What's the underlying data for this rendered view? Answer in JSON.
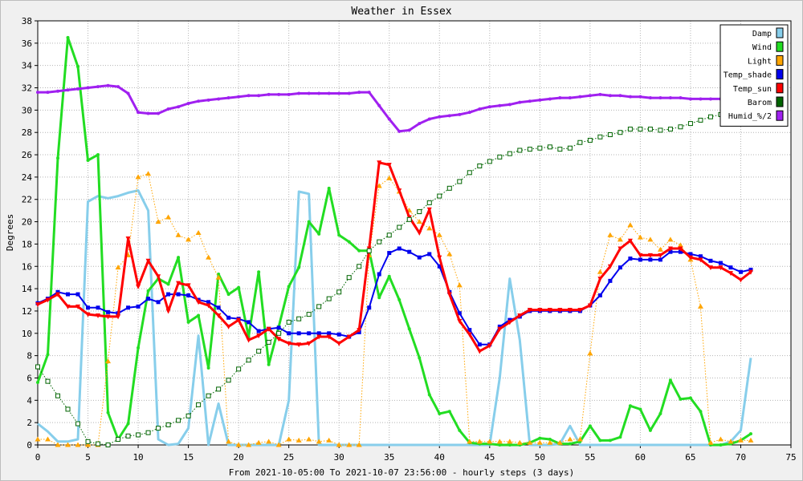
{
  "chart_data": {
    "type": "line",
    "title": "Weather in Essex",
    "xlabel": "From 2021-10-05:00 To 2021-10-07 23:56:00 - hourly steps (3 days)",
    "ylabel": "Degrees",
    "xlim": [
      0,
      75
    ],
    "ylim": [
      0,
      38
    ],
    "x_ticks": [
      0,
      5,
      10,
      15,
      20,
      25,
      30,
      35,
      40,
      45,
      50,
      55,
      60,
      65,
      70,
      75
    ],
    "y_ticks": [
      0,
      2,
      4,
      6,
      8,
      10,
      12,
      14,
      16,
      18,
      20,
      22,
      24,
      26,
      28,
      30,
      32,
      34,
      36,
      38
    ],
    "grid": true,
    "legend_position": "top-right",
    "series": [
      {
        "name": "Damp",
        "color": "#87ceeb",
        "marker": "none",
        "style": "solid",
        "width": 3,
        "values": [
          1.9,
          1.2,
          0.3,
          0.3,
          0.5,
          21.8,
          22.3,
          22.1,
          22.3,
          22.6,
          22.8,
          21.0,
          0.5,
          0,
          0.1,
          1.5,
          9.8,
          0,
          3.7,
          0,
          0,
          0,
          0,
          0,
          0,
          4.0,
          22.7,
          22.5,
          0,
          0,
          0,
          0,
          0,
          0,
          0,
          0,
          0,
          0,
          0,
          0,
          0,
          0,
          0,
          0,
          0,
          0,
          6.0,
          14.9,
          9.4,
          0,
          0,
          0,
          0.1,
          1.7,
          0,
          0,
          0,
          0,
          0,
          0,
          0,
          0,
          0,
          0,
          0,
          0,
          0,
          0,
          0,
          0.3,
          1.3,
          7.8
        ]
      },
      {
        "name": "Wind",
        "color": "#22dd22",
        "marker": "dot",
        "style": "solid",
        "width": 3,
        "values": [
          5.6,
          8.1,
          25.7,
          36.5,
          33.9,
          25.5,
          26.0,
          2.9,
          0.5,
          1.9,
          8.7,
          13.8,
          14.9,
          14.4,
          16.8,
          11.0,
          11.6,
          6.9,
          15.3,
          13.5,
          14.1,
          9.7,
          15.5,
          7.2,
          10.6,
          14.2,
          15.9,
          20.0,
          18.9,
          23.0,
          18.8,
          18.2,
          17.4,
          17.4,
          13.2,
          15.1,
          13.0,
          10.4,
          7.8,
          4.5,
          2.8,
          3.0,
          1.3,
          0.2,
          0.1,
          0.1,
          0,
          0,
          0,
          0.2,
          0.6,
          0.5,
          0.1,
          0.1,
          0.3,
          1.7,
          0.4,
          0.4,
          0.7,
          3.5,
          3.2,
          1.3,
          2.8,
          5.8,
          4.1,
          4.2,
          3.0,
          0,
          0,
          0.1,
          0.4,
          1.0
        ]
      },
      {
        "name": "Light",
        "color": "#ffa500",
        "marker": "triangle",
        "style": "dotted",
        "width": 1,
        "values": [
          0.5,
          0.5,
          0,
          0,
          0,
          0,
          0,
          7.5,
          15.9,
          17.0,
          24.0,
          24.3,
          20.0,
          20.4,
          18.8,
          18.4,
          19.0,
          16.8,
          15.0,
          0.3,
          0,
          0,
          0.2,
          0.3,
          0,
          0.5,
          0.4,
          0.5,
          0.3,
          0.4,
          0,
          0,
          0,
          17.0,
          23.2,
          23.9,
          22.7,
          21.0,
          20.0,
          19.4,
          18.8,
          17.1,
          14.3,
          0.3,
          0.3,
          0.3,
          0.3,
          0.3,
          0.2,
          0.2,
          0.2,
          0.2,
          0.2,
          0.5,
          0.5,
          8.2,
          15.5,
          18.8,
          18.4,
          19.7,
          18.6,
          18.4,
          17.5,
          18.4,
          17.9,
          16.6,
          12.4,
          0.2,
          0.5,
          0.3,
          0.4,
          0.4
        ]
      },
      {
        "name": "Temp_shade",
        "color": "#0000ee",
        "marker": "square",
        "style": "solid",
        "width": 2,
        "values": [
          12.7,
          13.1,
          13.7,
          13.5,
          13.5,
          12.3,
          12.3,
          11.9,
          11.8,
          12.3,
          12.4,
          13.1,
          12.8,
          13.5,
          13.5,
          13.4,
          13.0,
          12.8,
          12.3,
          11.4,
          11.3,
          11.0,
          10.2,
          10.4,
          10.5,
          10.0,
          10.0,
          10.0,
          10.0,
          10.0,
          9.9,
          9.7,
          10.1,
          12.3,
          15.3,
          17.2,
          17.6,
          17.3,
          16.8,
          17.1,
          16.0,
          13.7,
          11.8,
          10.3,
          9.0,
          9.0,
          10.6,
          11.2,
          11.5,
          12.0,
          12.0,
          12.0,
          12.0,
          12.0,
          12.0,
          12.5,
          13.4,
          14.7,
          15.9,
          16.7,
          16.6,
          16.6,
          16.6,
          17.3,
          17.3,
          17.1,
          16.9,
          16.5,
          16.3,
          15.9,
          15.5,
          15.7
        ]
      },
      {
        "name": "Temp_sun",
        "color": "#ff0000",
        "marker": "triangle-down",
        "style": "solid",
        "width": 3,
        "values": [
          12.6,
          13.0,
          13.5,
          12.4,
          12.4,
          11.7,
          11.6,
          11.5,
          11.5,
          18.5,
          14.2,
          16.5,
          15.1,
          12.0,
          14.5,
          14.3,
          12.8,
          12.5,
          11.6,
          10.6,
          11.2,
          9.4,
          9.8,
          10.4,
          9.5,
          9.1,
          9.0,
          9.1,
          9.7,
          9.7,
          9.1,
          9.7,
          10.3,
          17.6,
          25.3,
          25.1,
          22.8,
          20.4,
          19.0,
          21.1,
          16.8,
          13.5,
          11.1,
          9.9,
          8.4,
          8.9,
          10.4,
          11.0,
          11.6,
          12.1,
          12.1,
          12.1,
          12.1,
          12.1,
          12.1,
          12.5,
          14.9,
          16.0,
          17.6,
          18.3,
          17.0,
          17.0,
          17.0,
          17.6,
          17.6,
          16.8,
          16.6,
          15.9,
          15.9,
          15.4,
          14.8,
          15.5
        ]
      },
      {
        "name": "Barom",
        "color": "#006400",
        "marker": "hollow-square",
        "style": "dotted",
        "width": 1,
        "values": [
          7.0,
          5.7,
          4.4,
          3.2,
          1.9,
          0.3,
          0.1,
          0,
          0.5,
          0.8,
          0.9,
          1.1,
          1.5,
          1.8,
          2.2,
          2.6,
          3.6,
          4.4,
          5.0,
          5.8,
          6.8,
          7.6,
          8.4,
          9.2,
          10.0,
          11.0,
          11.3,
          11.7,
          12.4,
          13.1,
          13.7,
          15.0,
          16.0,
          17.4,
          18.2,
          18.8,
          19.5,
          20.2,
          20.9,
          21.7,
          22.3,
          23.0,
          23.6,
          24.4,
          25.0,
          25.4,
          25.8,
          26.1,
          26.4,
          26.5,
          26.6,
          26.7,
          26.5,
          26.6,
          27.1,
          27.3,
          27.6,
          27.8,
          28.0,
          28.3,
          28.3,
          28.3,
          28.2,
          28.3,
          28.5,
          28.8,
          29.1,
          29.4,
          29.6,
          29.8,
          30.1,
          30.1
        ]
      },
      {
        "name": "Humid_%/2",
        "color": "#a020f0",
        "marker": "dot",
        "style": "solid",
        "width": 3,
        "values": [
          31.6,
          31.6,
          31.7,
          31.8,
          31.9,
          32.0,
          32.1,
          32.2,
          32.1,
          31.5,
          29.8,
          29.7,
          29.7,
          30.1,
          30.3,
          30.6,
          30.8,
          30.9,
          31.0,
          31.1,
          31.2,
          31.3,
          31.3,
          31.4,
          31.4,
          31.4,
          31.5,
          31.5,
          31.5,
          31.5,
          31.5,
          31.5,
          31.6,
          31.6,
          30.4,
          29.2,
          28.1,
          28.2,
          28.8,
          29.2,
          29.4,
          29.5,
          29.6,
          29.8,
          30.1,
          30.3,
          30.4,
          30.5,
          30.7,
          30.8,
          30.9,
          31.0,
          31.1,
          31.1,
          31.2,
          31.3,
          31.4,
          31.3,
          31.3,
          31.2,
          31.2,
          31.1,
          31.1,
          31.1,
          31.1,
          31.0,
          31.0,
          31.0,
          31.0,
          31.0,
          31.0,
          31.0
        ]
      }
    ]
  }
}
